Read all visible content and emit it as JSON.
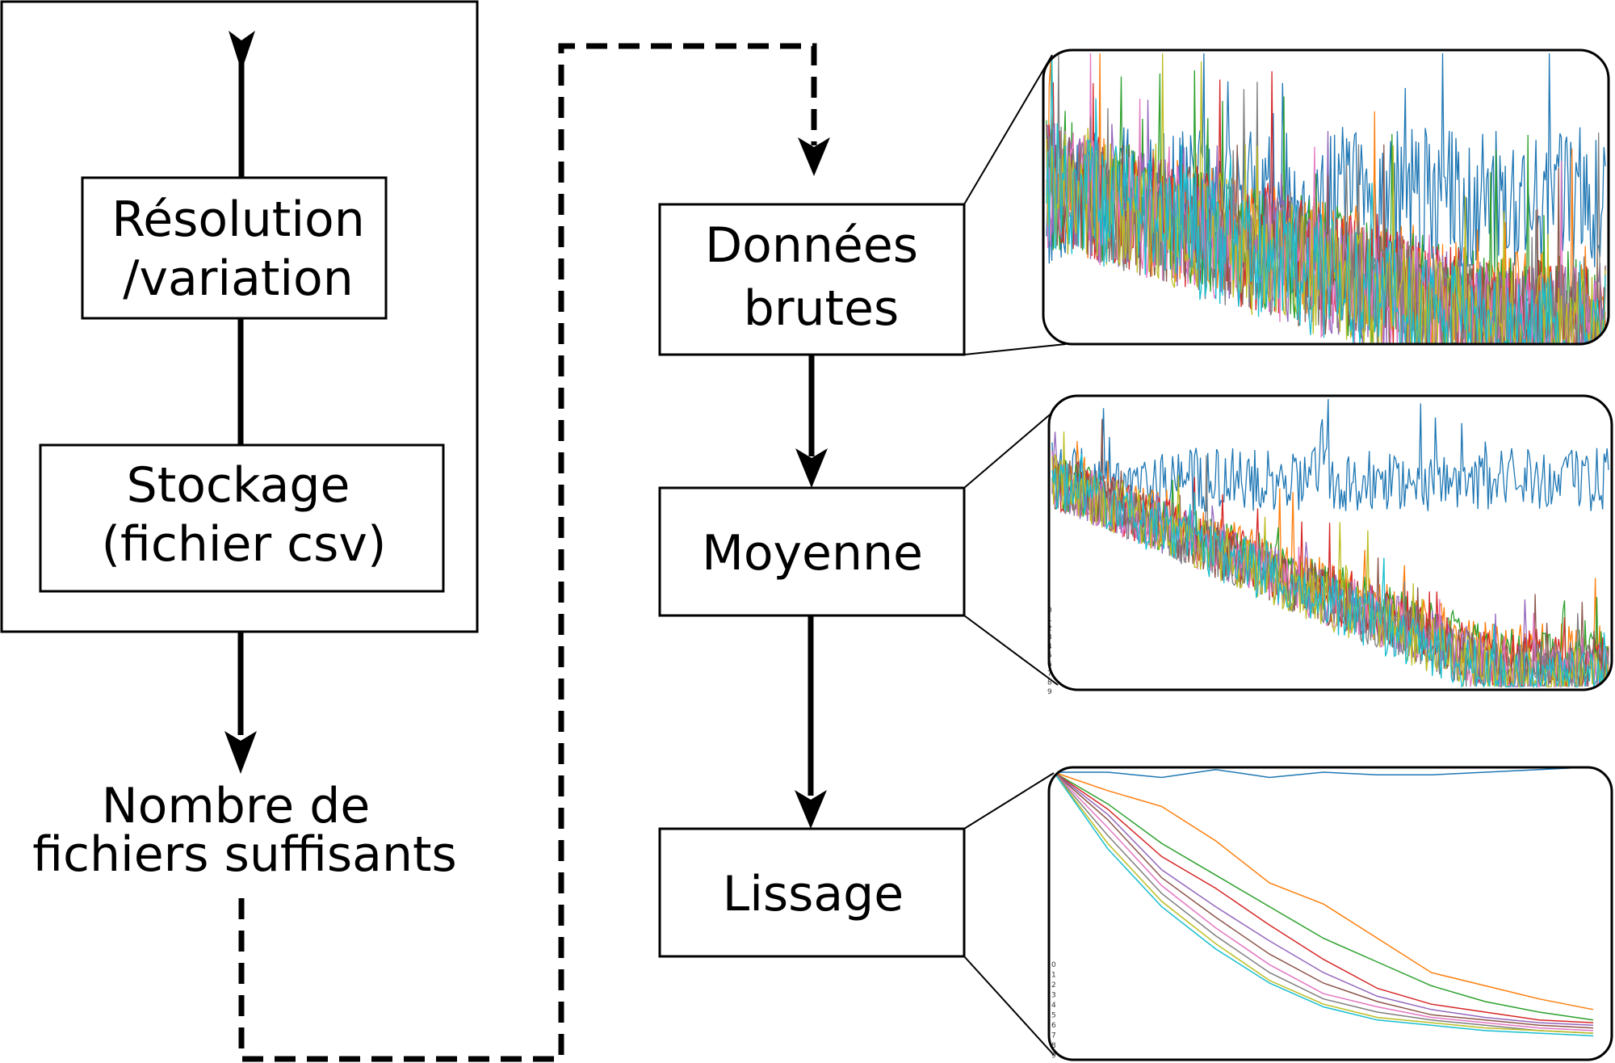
{
  "left_panel": {
    "box1_lines": [
      "Résolution",
      "/variation"
    ],
    "box2_lines": [
      "Stockage",
      "(fichier csv)"
    ],
    "outcome_lines": [
      "Nombre de",
      "fichiers suffisants"
    ]
  },
  "pipeline": {
    "step1_lines": [
      "Données",
      "brutes"
    ],
    "step2_lines": [
      "Moyenne"
    ],
    "step3_lines": [
      "Lissage"
    ]
  },
  "series_colors": [
    "#1f77b4",
    "#ff7f0e",
    "#2ca02c",
    "#d62728",
    "#9467bd",
    "#8c564b",
    "#e377c2",
    "#7f7f7f",
    "#bcbd22",
    "#17becf"
  ],
  "legend_ticks": [
    "0",
    "1",
    "2",
    "3",
    "4",
    "5",
    "6",
    "7",
    "8",
    "9"
  ],
  "chart_data": [
    {
      "type": "line",
      "description_id": "raw",
      "series_count": 10,
      "noise": 0.55,
      "start": [
        0.5,
        0.55,
        0.55,
        0.55,
        0.55,
        0.55,
        0.55,
        0.55,
        0.55,
        0.55
      ],
      "end": [
        0.5,
        0.12,
        0.1,
        0.08,
        0.07,
        0.06,
        0.05,
        0.05,
        0.04,
        0.03
      ]
    },
    {
      "type": "line",
      "description_id": "mean",
      "series_count": 10,
      "noise": 0.25,
      "start": [
        0.72,
        0.72,
        0.72,
        0.72,
        0.72,
        0.72,
        0.72,
        0.72,
        0.72,
        0.72
      ],
      "end": [
        0.72,
        0.12,
        0.1,
        0.08,
        0.07,
        0.06,
        0.05,
        0.05,
        0.04,
        0.03
      ]
    },
    {
      "type": "line",
      "description_id": "smoothed",
      "x": [
        0,
        1,
        2,
        3,
        4,
        5,
        6,
        7,
        8,
        9,
        10
      ],
      "series": [
        {
          "values": [
            1.0,
            1.0,
            0.98,
            1.01,
            0.98,
            1.0,
            0.99,
            0.99,
            1.0,
            1.01,
            1.02
          ]
        },
        {
          "values": [
            1.0,
            0.93,
            0.87,
            0.74,
            0.58,
            0.5,
            0.37,
            0.24,
            0.19,
            0.14,
            0.1
          ]
        },
        {
          "values": [
            1.0,
            0.88,
            0.73,
            0.61,
            0.49,
            0.37,
            0.28,
            0.19,
            0.13,
            0.09,
            0.06
          ]
        },
        {
          "values": [
            1.0,
            0.86,
            0.68,
            0.56,
            0.42,
            0.29,
            0.18,
            0.12,
            0.09,
            0.06,
            0.05
          ]
        },
        {
          "values": [
            1.0,
            0.84,
            0.63,
            0.49,
            0.36,
            0.24,
            0.15,
            0.1,
            0.07,
            0.05,
            0.04
          ]
        },
        {
          "values": [
            1.0,
            0.82,
            0.6,
            0.45,
            0.31,
            0.2,
            0.13,
            0.08,
            0.06,
            0.04,
            0.03
          ]
        },
        {
          "values": [
            1.0,
            0.79,
            0.57,
            0.41,
            0.27,
            0.16,
            0.11,
            0.07,
            0.05,
            0.03,
            0.02
          ]
        },
        {
          "values": [
            1.0,
            0.76,
            0.54,
            0.38,
            0.24,
            0.14,
            0.09,
            0.06,
            0.04,
            0.02,
            0.01
          ]
        },
        {
          "values": [
            1.0,
            0.73,
            0.51,
            0.35,
            0.21,
            0.12,
            0.07,
            0.05,
            0.03,
            0.02,
            0.01
          ]
        },
        {
          "values": [
            1.0,
            0.71,
            0.49,
            0.33,
            0.2,
            0.11,
            0.06,
            0.04,
            0.02,
            0.01,
            0.0
          ]
        }
      ]
    }
  ]
}
